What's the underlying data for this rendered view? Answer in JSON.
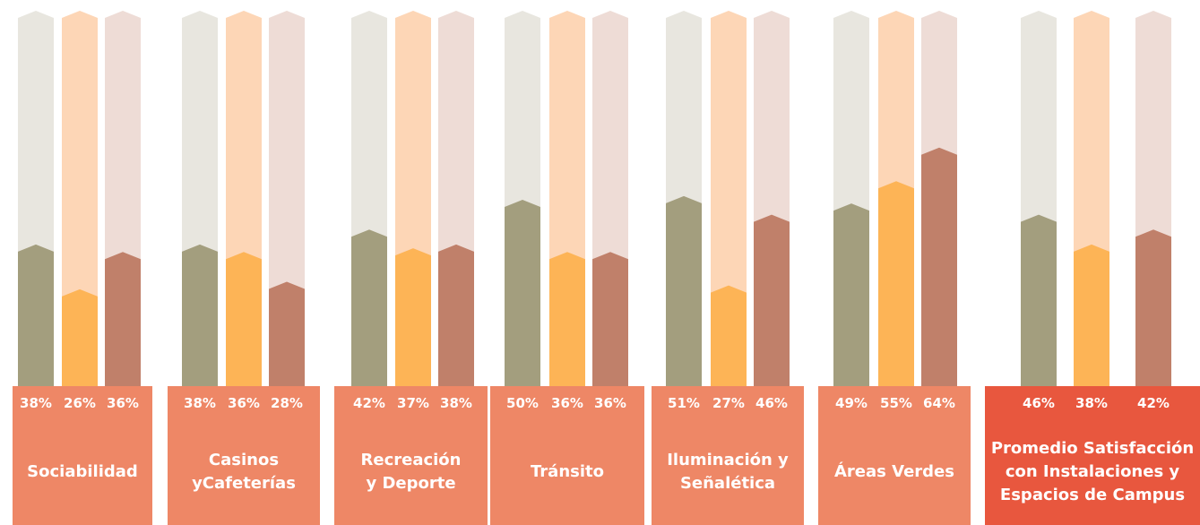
{
  "chart_data": {
    "type": "bar",
    "categories": [
      "Sociabilidad",
      "Casinos\nyCafeterías",
      "Recreación\ny Deporte",
      "Tránsito",
      "Iluminación y\nSeñalética",
      "Áreas Verdes",
      "Promedio Satisfacción\ncon Instalaciones y\nEspacios de Campus"
    ],
    "series": [
      {
        "color": "#a39e7e",
        "track_color": "#e8e6df",
        "values": [
          38,
          38,
          42,
          50,
          51,
          49,
          46
        ],
        "value_labels": [
          "38%",
          "38%",
          "42%",
          "50%",
          "51%",
          "49%",
          "46%"
        ]
      },
      {
        "color": "#fdb456",
        "track_color": "#fdd6b6",
        "values": [
          26,
          36,
          37,
          36,
          27,
          55,
          38
        ],
        "value_labels": [
          "26%",
          "36%",
          "37%",
          "36%",
          "27%",
          "55%",
          "38%"
        ]
      },
      {
        "color": "#c0806a",
        "track_color": "#eedcd6",
        "values": [
          36,
          28,
          38,
          36,
          46,
          64,
          42
        ],
        "value_labels": [
          "36%",
          "28%",
          "38%",
          "36%",
          "46%",
          "64%",
          "42%"
        ]
      }
    ],
    "ylim": [
      0,
      100
    ]
  }
}
